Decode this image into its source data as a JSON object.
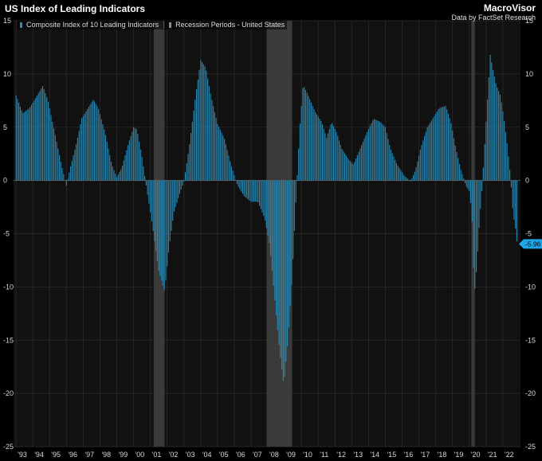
{
  "header": {
    "title": "US Index of Leading Indicators",
    "brand": "MacroVisor",
    "source": "Data by FactSet Research"
  },
  "colors": {
    "background": "#000000",
    "plot_background": "#111111",
    "bar": "#2a8bb5",
    "recession": "#3a3a3a",
    "grid": "#262626",
    "last_value_tag": "#1ea7e8"
  },
  "chart_data": {
    "type": "bar",
    "title": "US Index of Leading Indicators",
    "xlabel": "",
    "ylabel": "",
    "ylim": [
      -25,
      15
    ],
    "xlim": [
      1992.85,
      2023.05
    ],
    "yticks": [
      15,
      10,
      5,
      0,
      -5,
      -10,
      -15,
      -20,
      -25
    ],
    "xticks": [
      "'93",
      "'94",
      "'95",
      "'96",
      "'97",
      "'98",
      "'99",
      "'00",
      "'01",
      "'02",
      "'03",
      "'04",
      "'05",
      "'06",
      "'07",
      "'08",
      "'09",
      "'10",
      "'11",
      "'12",
      "'13",
      "'14",
      "'15",
      "'16",
      "'17",
      "'18",
      "'19",
      "'20",
      "'21",
      "'22"
    ],
    "grid": true,
    "legend": "top-left",
    "series": [
      {
        "name": "Composite Index of 10 Leading Indicators",
        "start": 1993.0,
        "step_months": 1,
        "keypoints": [
          [
            1993.0,
            8.0
          ],
          [
            1993.4,
            6.3
          ],
          [
            1993.8,
            6.8
          ],
          [
            1994.0,
            7.3
          ],
          [
            1994.6,
            8.9
          ],
          [
            1994.9,
            7.5
          ],
          [
            1995.3,
            4.5
          ],
          [
            1995.7,
            1.5
          ],
          [
            1996.0,
            -0.5
          ],
          [
            1996.2,
            1.0
          ],
          [
            1996.6,
            3.5
          ],
          [
            1996.9,
            5.8
          ],
          [
            1997.6,
            7.6
          ],
          [
            1997.9,
            6.8
          ],
          [
            1998.3,
            4.5
          ],
          [
            1998.7,
            1.5
          ],
          [
            1999.0,
            0.3
          ],
          [
            1999.3,
            1.2
          ],
          [
            1999.7,
            3.5
          ],
          [
            2000.0,
            5.0
          ],
          [
            2000.2,
            4.8
          ],
          [
            2000.5,
            2.2
          ],
          [
            2000.8,
            -1.0
          ],
          [
            2001.1,
            -4.0
          ],
          [
            2001.5,
            -8.5
          ],
          [
            2001.85,
            -10.4
          ],
          [
            2002.1,
            -6.5
          ],
          [
            2002.4,
            -3.0
          ],
          [
            2002.8,
            -1.0
          ],
          [
            2003.0,
            -0.1
          ],
          [
            2003.3,
            3.0
          ],
          [
            2003.7,
            8.0
          ],
          [
            2004.0,
            11.3
          ],
          [
            2004.3,
            10.6
          ],
          [
            2004.6,
            8.0
          ],
          [
            2005.0,
            5.3
          ],
          [
            2005.4,
            4.0
          ],
          [
            2005.8,
            1.5
          ],
          [
            2006.2,
            -0.5
          ],
          [
            2006.6,
            -1.5
          ],
          [
            2007.0,
            -2.0
          ],
          [
            2007.4,
            -2.0
          ],
          [
            2007.8,
            -3.5
          ],
          [
            2008.1,
            -6.0
          ],
          [
            2008.4,
            -11.0
          ],
          [
            2008.7,
            -16.0
          ],
          [
            2008.95,
            -19.3
          ],
          [
            2009.2,
            -15.0
          ],
          [
            2009.45,
            -9.0
          ],
          [
            2009.7,
            -1.0
          ],
          [
            2009.9,
            5.0
          ],
          [
            2010.1,
            9.0
          ],
          [
            2010.4,
            8.0
          ],
          [
            2010.8,
            6.5
          ],
          [
            2011.2,
            5.5
          ],
          [
            2011.5,
            4.0
          ],
          [
            2011.8,
            5.5
          ],
          [
            2012.1,
            4.5
          ],
          [
            2012.4,
            3.0
          ],
          [
            2012.8,
            2.0
          ],
          [
            2013.1,
            1.5
          ],
          [
            2013.5,
            3.0
          ],
          [
            2013.9,
            4.5
          ],
          [
            2014.3,
            5.8
          ],
          [
            2014.7,
            5.5
          ],
          [
            2015.0,
            5.0
          ],
          [
            2015.3,
            3.0
          ],
          [
            2015.7,
            1.5
          ],
          [
            2016.1,
            0.5
          ],
          [
            2016.5,
            -0.1
          ],
          [
            2016.8,
            1.0
          ],
          [
            2017.1,
            3.0
          ],
          [
            2017.5,
            5.0
          ],
          [
            2017.9,
            6.0
          ],
          [
            2018.2,
            6.8
          ],
          [
            2018.6,
            7.0
          ],
          [
            2018.9,
            5.5
          ],
          [
            2019.2,
            3.0
          ],
          [
            2019.5,
            1.0
          ],
          [
            2019.8,
            -0.5
          ],
          [
            2020.0,
            -1.0
          ],
          [
            2020.15,
            -3.0
          ],
          [
            2020.3,
            -10.8
          ],
          [
            2020.45,
            -8.0
          ],
          [
            2020.6,
            -4.0
          ],
          [
            2020.75,
            -1.0
          ],
          [
            2020.9,
            3.0
          ],
          [
            2021.1,
            8.0
          ],
          [
            2021.25,
            11.8
          ],
          [
            2021.4,
            10.5
          ],
          [
            2021.6,
            9.0
          ],
          [
            2021.85,
            8.0
          ],
          [
            2022.05,
            6.0
          ],
          [
            2022.25,
            3.5
          ],
          [
            2022.45,
            0.5
          ],
          [
            2022.6,
            -3.0
          ],
          [
            2022.75,
            -4.5
          ],
          [
            2022.85,
            -5.96
          ]
        ]
      }
    ],
    "recessions": [
      [
        2001.2,
        2001.85
      ],
      [
        2007.92,
        2009.45
      ],
      [
        2020.12,
        2020.33
      ]
    ],
    "last_value_label": "-5.96"
  }
}
